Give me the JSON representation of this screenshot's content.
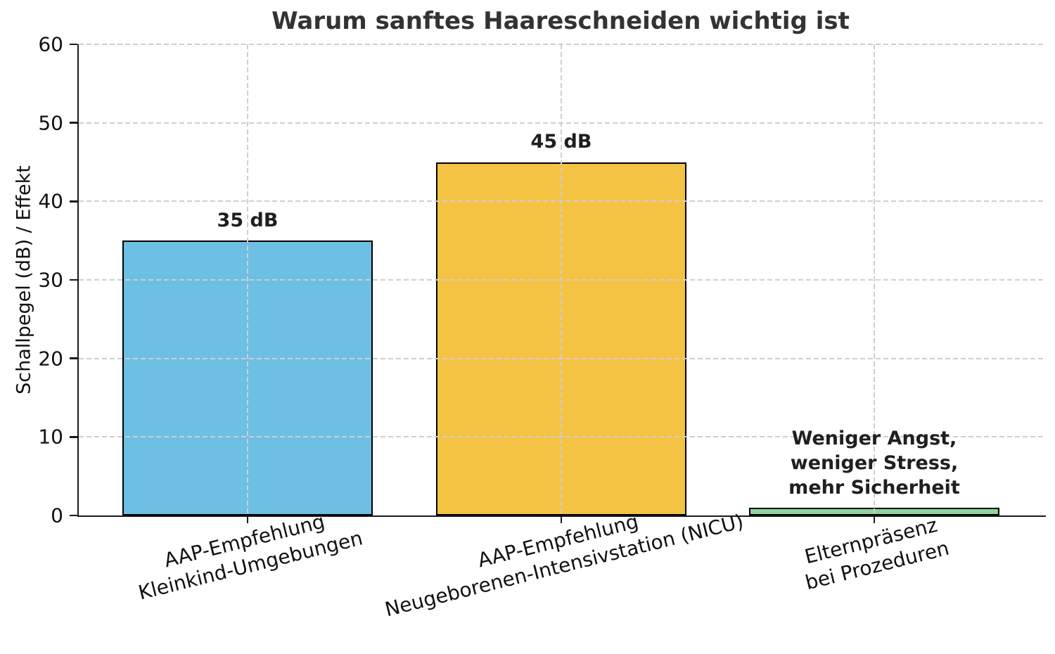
{
  "chart_data": {
    "type": "bar",
    "title": "Warum sanftes Haareschneiden wichtig ist",
    "ylabel": "Schallpegel (dB) / Effekt",
    "ylim": [
      0,
      60
    ],
    "yticks": [
      0,
      10,
      20,
      30,
      40,
      50,
      60
    ],
    "grid": {
      "style": "dashed",
      "color": "#cfcfcf",
      "drawn_over_bars": true
    },
    "legend": "none",
    "categories": [
      "AAP-Empfehlung\nKleinkind-Umgebungen",
      "AAP-Empfehlung\nNeugeborenen-Intensivstation (NICU)",
      "Elternpräsenz\nbei Prozeduren"
    ],
    "values": [
      35,
      45,
      1
    ],
    "bar_labels": [
      "35 dB",
      "45 dB",
      "Weniger Angst,\nweniger Stress,\nmehr Sicherheit"
    ],
    "bar_colors": [
      "#6dbfe3",
      "#f5c343",
      "#8fd39e"
    ],
    "bar_edge_color": "#000000",
    "x_tick_rotation_deg": 14
  }
}
